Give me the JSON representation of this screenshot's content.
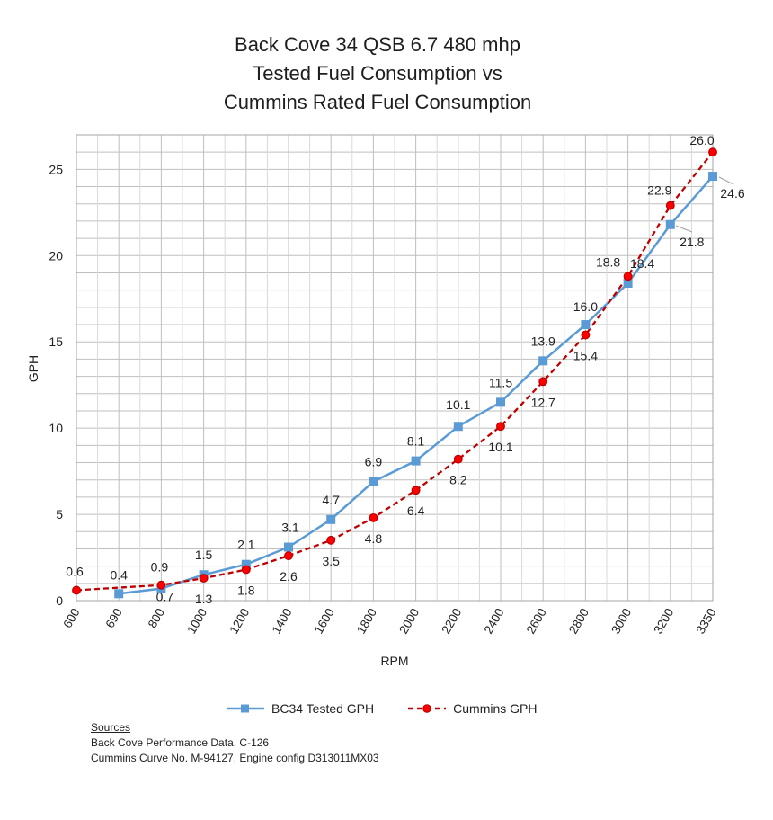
{
  "chart_data": {
    "type": "line",
    "title": [
      "Back Cove 34 QSB 6.7 480 mhp",
      "Tested Fuel Consumption vs",
      "Cummins Rated Fuel Consumption"
    ],
    "xlabel": "RPM",
    "ylabel": "GPH",
    "categories": [
      "600",
      "690",
      "800",
      "1000",
      "1200",
      "1400",
      "1600",
      "1800",
      "2000",
      "2200",
      "2400",
      "2600",
      "2800",
      "3000",
      "3200",
      "3350"
    ],
    "ylim": [
      0,
      27
    ],
    "yticks": [
      0,
      5,
      10,
      15,
      20,
      25
    ],
    "grid": true,
    "series": [
      {
        "name": "BC34 Tested GPH",
        "color": "#5b9bd5",
        "marker": "square",
        "dash": "solid",
        "values": [
          null,
          0.4,
          0.7,
          1.5,
          2.1,
          3.1,
          4.7,
          6.9,
          8.1,
          10.1,
          11.5,
          13.9,
          16.0,
          18.4,
          21.8,
          24.6
        ],
        "labels": [
          "",
          "0.4",
          "0.7",
          "1.5",
          "2.1",
          "3.1",
          "4.7",
          "6.9",
          "8.1",
          "10.1",
          "11.5",
          "13.9",
          "16.0",
          "18.4",
          "21.8",
          "24.6"
        ]
      },
      {
        "name": "Cummins GPH",
        "color": "#c00000",
        "marker_fill": "#ff0000",
        "marker": "circle",
        "dash": "dashed",
        "values": [
          0.6,
          null,
          0.9,
          1.3,
          1.8,
          2.6,
          3.5,
          4.8,
          6.4,
          8.2,
          10.1,
          12.7,
          15.4,
          18.8,
          22.9,
          26.0
        ],
        "labels": [
          "0.6",
          "",
          "0.9",
          "1.3",
          "1.8",
          "2.6",
          "3.5",
          "4.8",
          "6.4",
          "8.2",
          "10.1",
          "12.7",
          "15.4",
          "18.8",
          "22.9",
          "26.0"
        ]
      }
    ],
    "legend_position": "bottom"
  },
  "sources": {
    "heading": "Sources",
    "lines": [
      "Back Cove Performance Data.  C-126",
      "Cummins Curve No. M-94127, Engine config D313011MX03"
    ]
  }
}
